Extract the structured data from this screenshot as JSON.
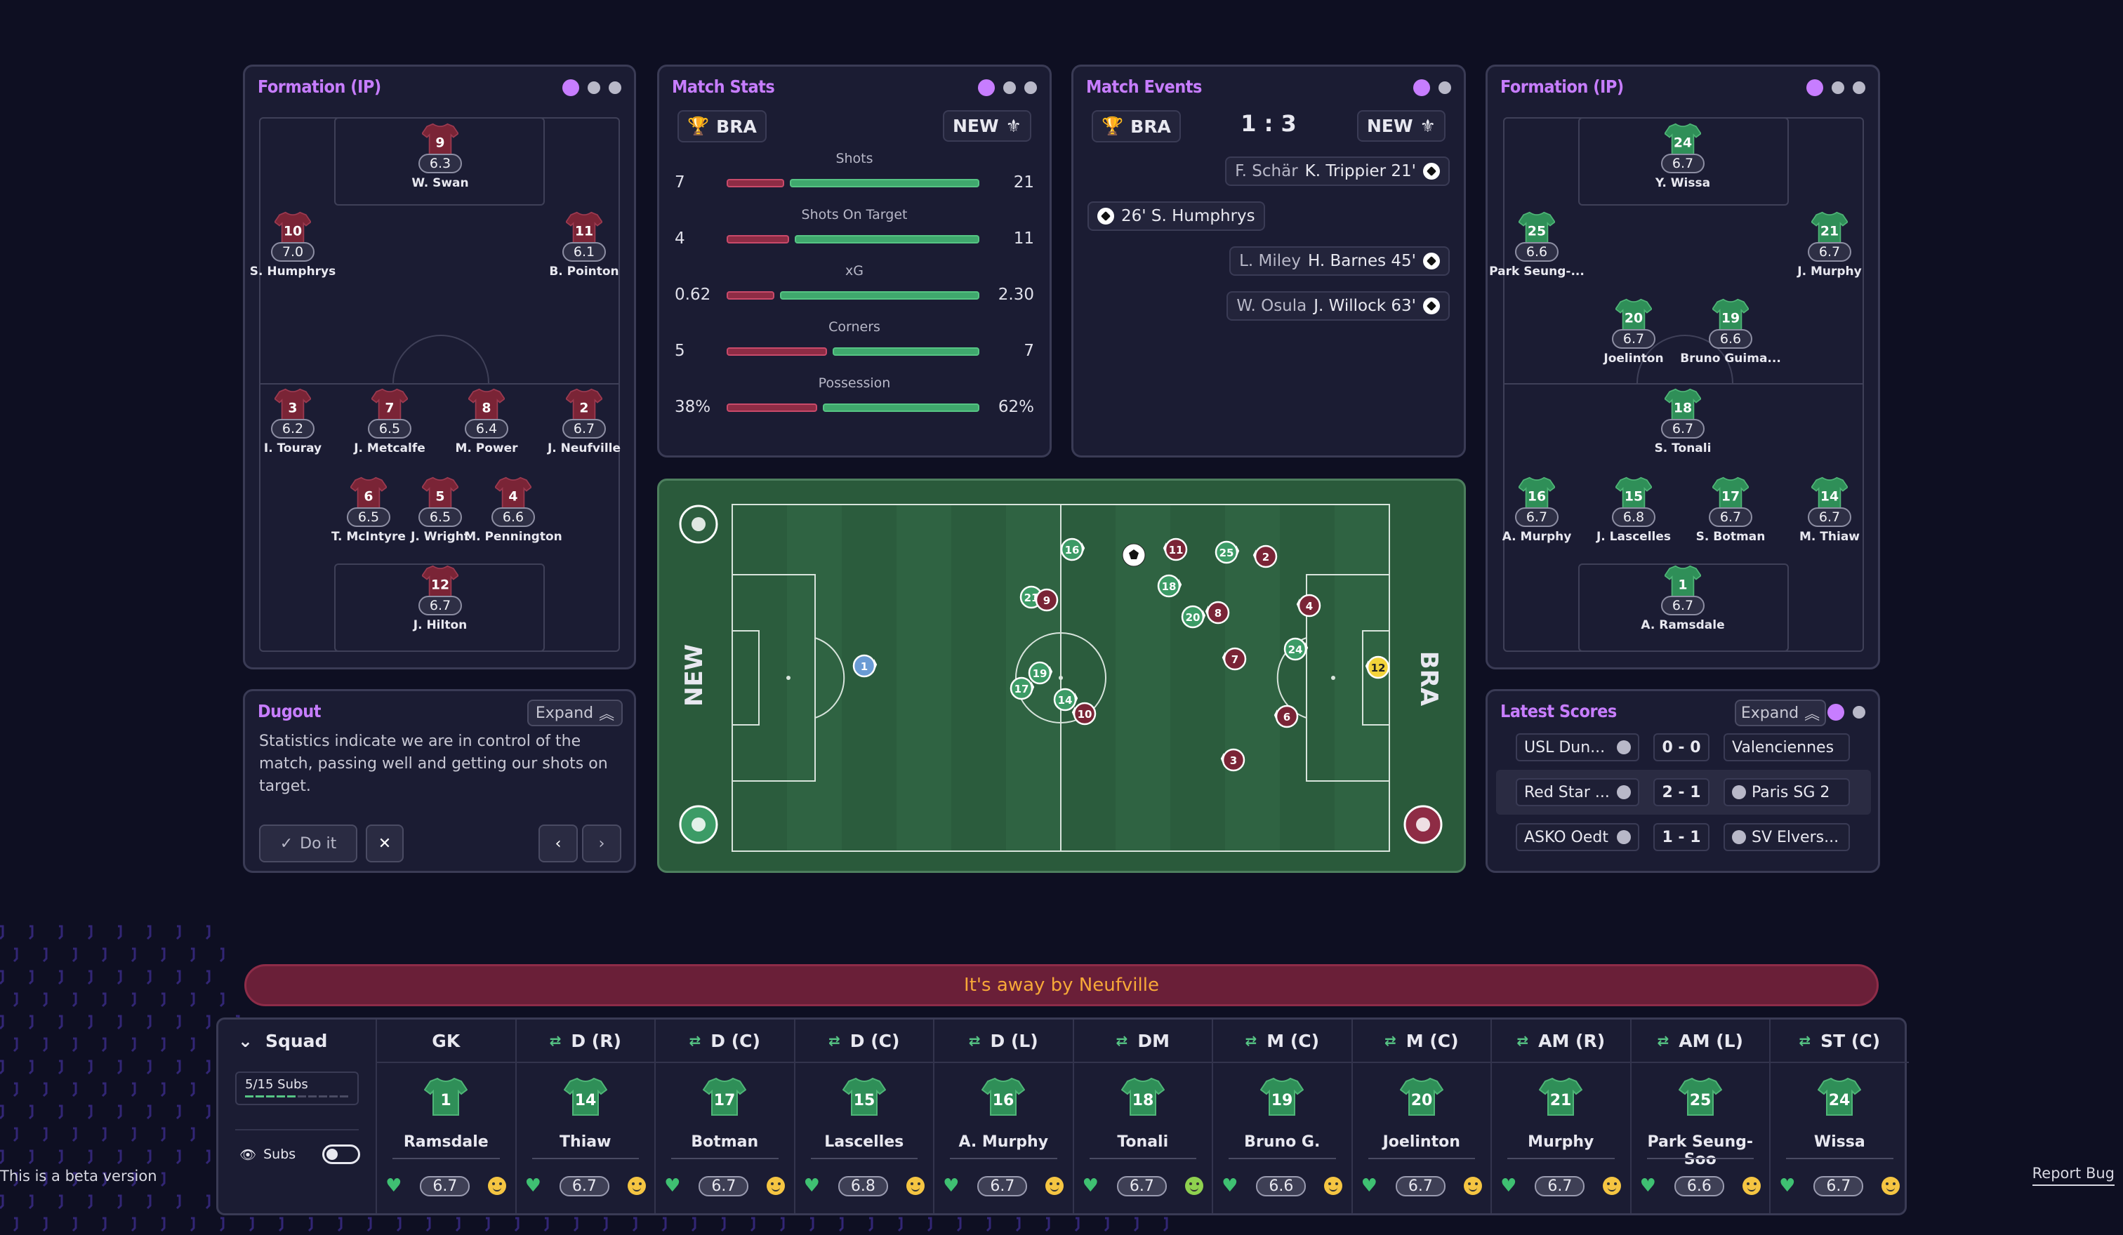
{
  "formation_left": {
    "title": "Formation (IP)",
    "players": [
      {
        "number": "9",
        "rating": "6.3",
        "name": "W. Swan"
      },
      {
        "number": "10",
        "rating": "7.0",
        "name": "S. Humphrys"
      },
      {
        "number": "11",
        "rating": "6.1",
        "name": "B. Pointon"
      },
      {
        "number": "3",
        "rating": "6.2",
        "name": "I. Touray"
      },
      {
        "number": "7",
        "rating": "6.5",
        "name": "J. Metcalfe"
      },
      {
        "number": "8",
        "rating": "6.4",
        "name": "M. Power"
      },
      {
        "number": "2",
        "rating": "6.7",
        "name": "J. Neufville"
      },
      {
        "number": "6",
        "rating": "6.5",
        "name": "T. McIntyre"
      },
      {
        "number": "5",
        "rating": "6.5",
        "name": "J. Wright"
      },
      {
        "number": "4",
        "rating": "6.6",
        "name": "M. Pennington"
      },
      {
        "number": "12",
        "rating": "6.7",
        "name": "J. Hilton"
      }
    ]
  },
  "match_stats": {
    "title": "Match Stats",
    "home": "BRA",
    "away": "NEW",
    "rows": [
      {
        "label": "Shots",
        "home": "7",
        "away": "21",
        "home_frac": 0.25,
        "away_frac": 0.75
      },
      {
        "label": "Shots On Target",
        "home": "4",
        "away": "11",
        "home_frac": 0.27,
        "away_frac": 0.73
      },
      {
        "label": "xG",
        "home": "0.62",
        "away": "2.30",
        "home_frac": 0.21,
        "away_frac": 0.79
      },
      {
        "label": "Corners",
        "home": "5",
        "away": "7",
        "home_frac": 0.42,
        "away_frac": 0.58
      },
      {
        "label": "Possession",
        "home": "38%",
        "away": "62%",
        "home_frac": 0.38,
        "away_frac": 0.62
      }
    ]
  },
  "match_events": {
    "title": "Match Events",
    "home": "BRA",
    "away": "NEW",
    "score": "1 : 3",
    "events": [
      {
        "assist": "F. Schär",
        "scorer": "K. Trippier 21'",
        "side": "right"
      },
      {
        "assist": "",
        "scorer": "26' S. Humphrys",
        "side": "left"
      },
      {
        "assist": "L. Miley",
        "scorer": "H. Barnes 45'",
        "side": "right"
      },
      {
        "assist": "W. Osula",
        "scorer": "J. Willock 63'",
        "side": "right"
      }
    ]
  },
  "formation_right": {
    "title": "Formation (IP)",
    "players": [
      {
        "number": "24",
        "rating": "6.7",
        "name": "Y. Wissa"
      },
      {
        "number": "25",
        "rating": "6.6",
        "name": "Park Seung-..."
      },
      {
        "number": "21",
        "rating": "6.7",
        "name": "J. Murphy"
      },
      {
        "number": "20",
        "rating": "6.7",
        "name": "Joelinton"
      },
      {
        "number": "19",
        "rating": "6.6",
        "name": "Bruno Guima..."
      },
      {
        "number": "18",
        "rating": "6.7",
        "name": "S. Tonali"
      },
      {
        "number": "16",
        "rating": "6.7",
        "name": "A. Murphy"
      },
      {
        "number": "15",
        "rating": "6.8",
        "name": "J. Lascelles"
      },
      {
        "number": "17",
        "rating": "6.7",
        "name": "S. Botman"
      },
      {
        "number": "14",
        "rating": "6.7",
        "name": "M. Thiaw"
      },
      {
        "number": "1",
        "rating": "6.7",
        "name": "A. Ramsdale"
      }
    ]
  },
  "pitch": {
    "left_team": "NEW",
    "right_team": "BRA",
    "green_tokens": [
      "16",
      "21",
      "18",
      "25",
      "20",
      "24",
      "19",
      "17",
      "14",
      "1"
    ],
    "red_tokens": [
      "11",
      "2",
      "9",
      "8",
      "4",
      "7",
      "6",
      "10",
      "3"
    ],
    "keeper_token": "12"
  },
  "dugout": {
    "title": "Dugout",
    "expand": "Expand",
    "message": "Statistics indicate we are in control of the match, passing well and getting our shots on target.",
    "do_it": "Do it"
  },
  "latest_scores": {
    "title": "Latest Scores",
    "expand": "Expand",
    "rows": [
      {
        "home": "USL Dun...",
        "score": "0 - 0",
        "away": "Valenciennes"
      },
      {
        "home": "Red Star ...",
        "score": "2 - 1",
        "away": "Paris SG 2"
      },
      {
        "home": "ASKO Oedt",
        "score": "1 - 1",
        "away": "SV Elvers..."
      }
    ]
  },
  "banner": "It's away by Neufville",
  "squad": {
    "title": "Squad",
    "subs_count": "5/15 Subs",
    "subs_label": "Subs",
    "columns": [
      {
        "pos": "GK",
        "number": "1",
        "name": "Ramsdale",
        "rating": "6.7"
      },
      {
        "pos": "D (R)",
        "number": "14",
        "name": "Thiaw",
        "rating": "6.7"
      },
      {
        "pos": "D (C)",
        "number": "17",
        "name": "Botman",
        "rating": "6.7"
      },
      {
        "pos": "D (C)",
        "number": "15",
        "name": "Lascelles",
        "rating": "6.8"
      },
      {
        "pos": "D (L)",
        "number": "16",
        "name": "A. Murphy",
        "rating": "6.7"
      },
      {
        "pos": "DM",
        "number": "18",
        "name": "Tonali",
        "rating": "6.7"
      },
      {
        "pos": "M (C)",
        "number": "19",
        "name": "Bruno G.",
        "rating": "6.6"
      },
      {
        "pos": "M (C)",
        "number": "20",
        "name": "Joelinton",
        "rating": "6.7"
      },
      {
        "pos": "AM (R)",
        "number": "21",
        "name": "Murphy",
        "rating": "6.7"
      },
      {
        "pos": "AM (L)",
        "number": "25",
        "name": "Park Seung-Soo",
        "rating": "6.6"
      },
      {
        "pos": "ST (C)",
        "number": "24",
        "name": "Wissa",
        "rating": "6.7"
      }
    ]
  },
  "footer": {
    "beta": "This is a beta version",
    "report": "Report Bug"
  },
  "colors": {
    "accent": "#c77dff",
    "home_red": "#8e2c45",
    "away_green": "#3fa86d",
    "pitch": "#2d5e3f"
  }
}
